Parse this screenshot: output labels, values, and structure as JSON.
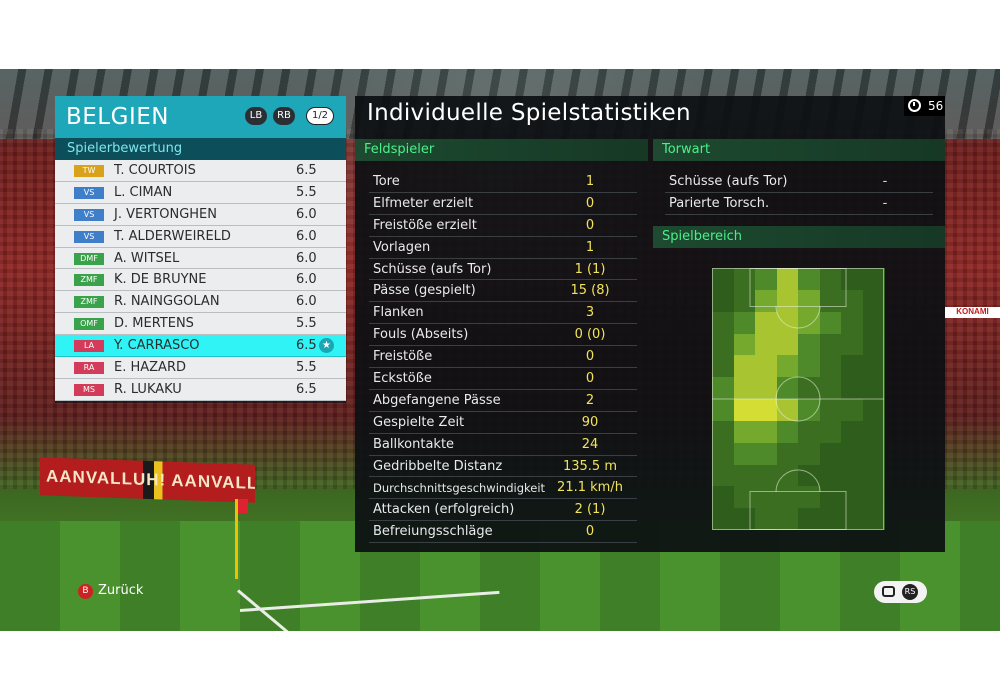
{
  "team": {
    "name": "BELGIEN",
    "lb_label": "LB",
    "rb_label": "RB",
    "page_indicator": "1/2"
  },
  "ratings": {
    "title": "Spielerbewertung",
    "players": [
      {
        "pos": "TW",
        "pos_color": "#d8a21a",
        "name": "T. COURTOIS",
        "rating": "6.5"
      },
      {
        "pos": "VS",
        "pos_color": "#3f7ec9",
        "name": "L. CIMAN",
        "rating": "5.5"
      },
      {
        "pos": "VS",
        "pos_color": "#3f7ec9",
        "name": "J. VERTONGHEN",
        "rating": "6.0"
      },
      {
        "pos": "VS",
        "pos_color": "#3f7ec9",
        "name": "T. ALDERWEIRELD",
        "rating": "6.0"
      },
      {
        "pos": "DMF",
        "pos_color": "#3aa24a",
        "name": "A. WITSEL",
        "rating": "6.0"
      },
      {
        "pos": "ZMF",
        "pos_color": "#3aa24a",
        "name": "K. DE BRUYNE",
        "rating": "6.0"
      },
      {
        "pos": "ZMF",
        "pos_color": "#3aa24a",
        "name": "R. NAINGGOLAN",
        "rating": "6.0"
      },
      {
        "pos": "OMF",
        "pos_color": "#3aa24a",
        "name": "D. MERTENS",
        "rating": "5.5"
      },
      {
        "pos": "LA",
        "pos_color": "#d23c5a",
        "name": "Y. CARRASCO",
        "rating": "6.5",
        "selected": true
      },
      {
        "pos": "RA",
        "pos_color": "#d23c5a",
        "name": "E. HAZARD",
        "rating": "5.5"
      },
      {
        "pos": "MS",
        "pos_color": "#d23c5a",
        "name": "R. LUKAKU",
        "rating": "6.5"
      }
    ]
  },
  "stats_panel": {
    "title": "Individuelle Spielstatistiken",
    "timer": "56",
    "field_player_title": "Feldspieler",
    "field_player_stats": [
      {
        "label": "Tore",
        "value": "1"
      },
      {
        "label": "Elfmeter erzielt",
        "value": "0"
      },
      {
        "label": "Freistöße erzielt",
        "value": "0"
      },
      {
        "label": "Vorlagen",
        "value": "1"
      },
      {
        "label": "Schüsse (aufs Tor)",
        "value": "1 (1)"
      },
      {
        "label": "Pässe (gespielt)",
        "value": "15 (8)"
      },
      {
        "label": "Flanken",
        "value": "3"
      },
      {
        "label": "Fouls (Abseits)",
        "value": "0 (0)"
      },
      {
        "label": "Freistöße",
        "value": "0"
      },
      {
        "label": "Eckstöße",
        "value": "0"
      },
      {
        "label": "Abgefangene Pässe",
        "value": "2"
      },
      {
        "label": "Gespielte Zeit",
        "value": "90"
      },
      {
        "label": "Ballkontakte",
        "value": "24"
      },
      {
        "label": "Gedribbelte Distanz",
        "value": "135.5 m"
      },
      {
        "label": "Durchschnittsgeschwindigkeit",
        "value": "21.1 km/h",
        "small": true
      },
      {
        "label": "Attacken (erfolgreich)",
        "value": "2 (1)"
      },
      {
        "label": "Befreiungsschläge",
        "value": "0"
      }
    ],
    "goalkeeper_title": "Torwart",
    "goalkeeper_stats": [
      {
        "label": "Schüsse (aufs Tor)",
        "value": "-"
      },
      {
        "label": "Parierte Torsch.",
        "value": "-"
      }
    ],
    "zone_title": "Spielbereich"
  },
  "heatmap_intensity": [
    [
      0,
      1,
      2,
      4,
      2,
      1,
      0,
      0
    ],
    [
      0,
      1,
      3,
      4,
      3,
      1,
      1,
      0
    ],
    [
      1,
      2,
      4,
      4,
      3,
      2,
      1,
      0
    ],
    [
      1,
      3,
      4,
      4,
      2,
      1,
      1,
      0
    ],
    [
      1,
      4,
      4,
      3,
      2,
      1,
      0,
      0
    ],
    [
      2,
      4,
      4,
      2,
      1,
      1,
      0,
      0
    ],
    [
      2,
      5,
      5,
      4,
      2,
      1,
      1,
      0
    ],
    [
      1,
      3,
      3,
      2,
      1,
      1,
      0,
      0
    ],
    [
      1,
      2,
      2,
      1,
      1,
      0,
      0,
      0
    ],
    [
      1,
      1,
      1,
      1,
      0,
      0,
      0,
      0
    ],
    [
      0,
      1,
      1,
      1,
      1,
      0,
      0,
      0
    ],
    [
      0,
      0,
      1,
      1,
      0,
      0,
      0,
      0
    ]
  ],
  "heat_colors": [
    "#2f5d1c",
    "#3c6e22",
    "#4f8a2a",
    "#74a92e",
    "#a8c531",
    "#d3dd34"
  ],
  "footer": {
    "back_button_icon": "B",
    "back_label": "Zurück",
    "rs_icon": "RS"
  },
  "scenery": {
    "banner_text": "AANVALLUH!   AANVALLUH!",
    "ad_text": "KONAMI"
  }
}
